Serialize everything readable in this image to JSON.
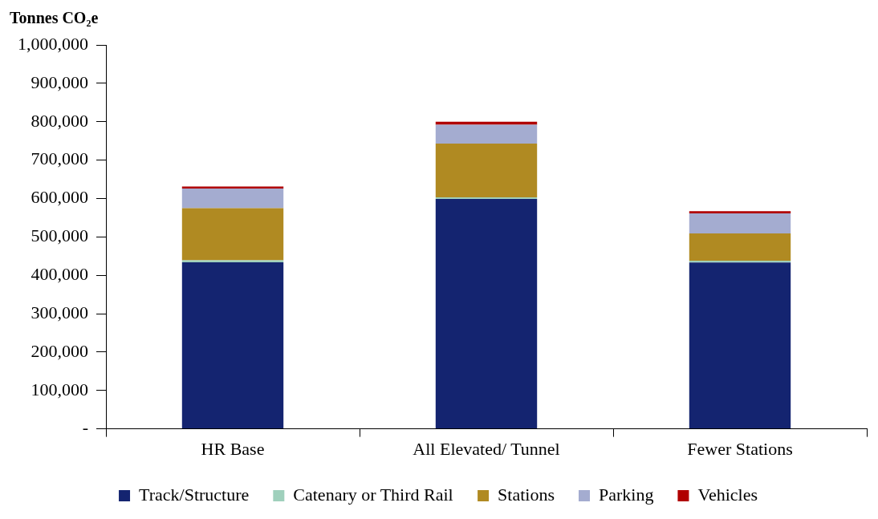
{
  "chart_data": {
    "type": "bar",
    "ylabel": "Tonnes CO₂e",
    "categories": [
      "HR Base",
      "All Elevated/ Tunnel",
      "Fewer Stations"
    ],
    "stacked": true,
    "series": [
      {
        "name": "Track/Structure",
        "color": "#142470",
        "values": [
          434000,
          599000,
          433000
        ]
      },
      {
        "name": "Catenary or Third Rail",
        "color": "#9fd0bc",
        "values": [
          5000,
          4000,
          5000
        ]
      },
      {
        "name": "Stations",
        "color": "#b08a22",
        "values": [
          136000,
          140000,
          71000
        ]
      },
      {
        "name": "Parking",
        "color": "#a4acd0",
        "values": [
          51000,
          49000,
          52000
        ]
      },
      {
        "name": "Vehicles",
        "color": "#b00000",
        "values": [
          5000,
          8000,
          6000
        ]
      }
    ],
    "ylim": [
      0,
      1000000
    ],
    "yticks": [
      {
        "value": 0,
        "label": "-"
      },
      {
        "value": 100000,
        "label": "100,000"
      },
      {
        "value": 200000,
        "label": "200,000"
      },
      {
        "value": 300000,
        "label": "300,000"
      },
      {
        "value": 400000,
        "label": "400,000"
      },
      {
        "value": 500000,
        "label": "500,000"
      },
      {
        "value": 600000,
        "label": "600,000"
      },
      {
        "value": 700000,
        "label": "700,000"
      },
      {
        "value": 800000,
        "label": "800,000"
      },
      {
        "value": 900000,
        "label": "900,000"
      },
      {
        "value": 1000000,
        "label": "1,000,000"
      }
    ],
    "grid": false,
    "legend": "bottom"
  }
}
